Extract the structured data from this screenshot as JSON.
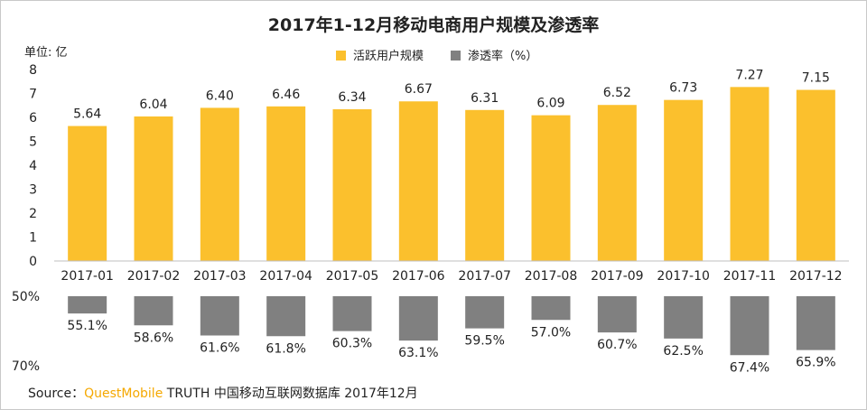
{
  "chart_data": {
    "type": "bar",
    "title": "2017年1-12月移动电商用户规模及渗透率",
    "unit_label": "单位: 亿",
    "categories": [
      "2017-01",
      "2017-02",
      "2017-03",
      "2017-04",
      "2017-05",
      "2017-06",
      "2017-07",
      "2017-08",
      "2017-09",
      "2017-10",
      "2017-11",
      "2017-12"
    ],
    "series": [
      {
        "name": "活跃用户规模",
        "values": [
          5.64,
          6.04,
          6.4,
          6.46,
          6.34,
          6.67,
          6.31,
          6.09,
          6.52,
          6.73,
          7.27,
          7.15
        ],
        "labels": [
          "5.64",
          "6.04",
          "6.40",
          "6.46",
          "6.34",
          "6.67",
          "6.31",
          "6.09",
          "6.52",
          "6.73",
          "7.27",
          "7.15"
        ],
        "color": "#fbc02d"
      },
      {
        "name": "渗透率（%）",
        "values": [
          55.1,
          58.6,
          61.6,
          61.8,
          60.3,
          63.1,
          59.5,
          57.0,
          60.7,
          62.5,
          67.4,
          65.9
        ],
        "labels": [
          "55.1%",
          "58.6%",
          "61.6%",
          "61.8%",
          "60.3%",
          "63.1%",
          "59.5%",
          "57.0%",
          "60.7%",
          "62.5%",
          "67.4%",
          "65.9%"
        ],
        "color": "#808080"
      }
    ],
    "ylim": [
      0,
      8
    ],
    "yticks": [
      "0",
      "1",
      "2",
      "3",
      "4",
      "5",
      "6",
      "7",
      "8"
    ],
    "y2lim": [
      50,
      70
    ],
    "y2ticks": [
      "50%",
      "70%"
    ],
    "legend_position": "top-center",
    "grid": false
  },
  "source": {
    "prefix": "Source：",
    "brand": "QuestMobile",
    "text": "TRUTH 中国移动互联网数据库 2017年12月"
  }
}
